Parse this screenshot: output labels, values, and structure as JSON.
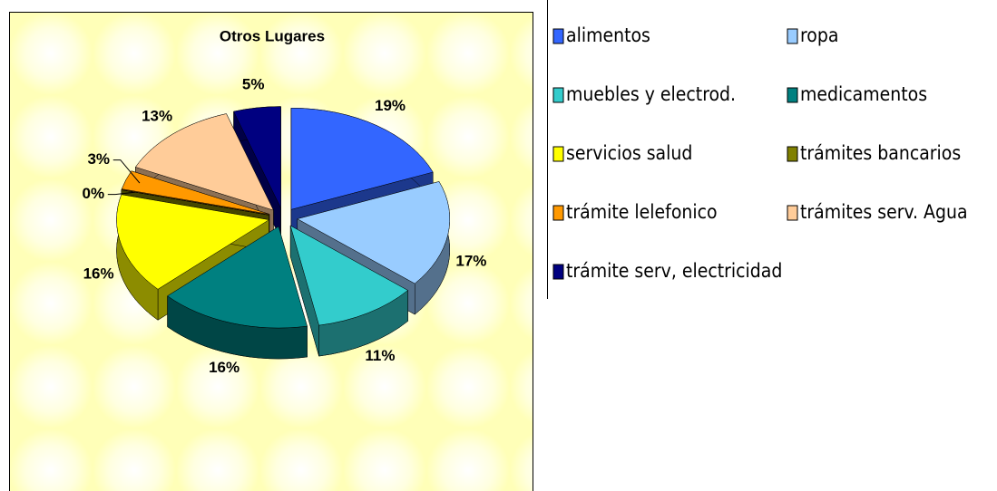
{
  "chart_data": {
    "type": "pie",
    "title": "Otros Lugares",
    "categories": [
      "alimentos",
      "ropa",
      "muebles y electrod.",
      "medicamentos",
      "servicios salud",
      "trámites bancarios",
      "trámite lelefonico",
      "trámites serv. Agua",
      "trámite serv, electricidad"
    ],
    "values": [
      19,
      17,
      11,
      16,
      16,
      0,
      3,
      13,
      5
    ],
    "value_labels": [
      "19%",
      "17%",
      "11%",
      "16%",
      "16%",
      "0%",
      "3%",
      "13%",
      "5%"
    ],
    "colors": [
      "#3366ff",
      "#99ccff",
      "#33cccc",
      "#008080",
      "#ffff00",
      "#808000",
      "#ff9900",
      "#ffcc99",
      "#000080"
    ],
    "legend": "right"
  }
}
